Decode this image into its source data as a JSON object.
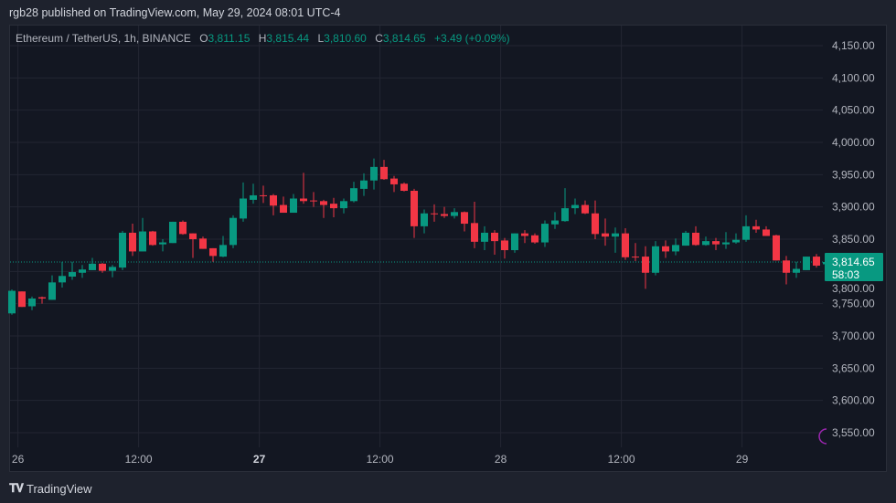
{
  "header": {
    "published": "rgb28 published on TradingView.com, May 29, 2024 08:01 UTC-4"
  },
  "legend": {
    "symbol": "Ethereum / TetherUS, 1h, BINANCE",
    "o_label": "O",
    "o": "3,811.15",
    "h_label": "H",
    "h": "3,815.44",
    "l_label": "L",
    "l": "3,810.60",
    "c_label": "C",
    "c": "3,814.65",
    "change": "+3.49 (+0.09%)"
  },
  "footer": {
    "brand": "TradingView",
    "logo": "TV"
  },
  "colors": {
    "up": "#089981",
    "down": "#f23645",
    "bg": "#131722",
    "grid": "#232632"
  },
  "chart_data": {
    "type": "candlestick",
    "title": "Ethereum / TetherUS, 1h, BINANCE",
    "ylim": [
      3530,
      4170
    ],
    "y_ticks": [
      "4,150.00",
      "4,100.00",
      "4,050.00",
      "4,000.00",
      "3,950.00",
      "3,900.00",
      "3,850.00",
      "3,800.00",
      "3,750.00",
      "3,700.00",
      "3,650.00",
      "3,600.00",
      "3,550.00"
    ],
    "y_tick_values": [
      4150,
      4100,
      4050,
      4000,
      3950,
      3900,
      3850,
      3800,
      3750,
      3700,
      3650,
      3600,
      3550
    ],
    "x_ticks": [
      {
        "label": "26",
        "index": 0.6,
        "bold": false
      },
      {
        "label": "12:00",
        "index": 12.6,
        "bold": false
      },
      {
        "label": "27",
        "index": 24.6,
        "bold": true
      },
      {
        "label": "12:00",
        "index": 36.6,
        "bold": false
      },
      {
        "label": "28",
        "index": 48.6,
        "bold": false
      },
      {
        "label": "12:00",
        "index": 60.6,
        "bold": false
      },
      {
        "label": "29",
        "index": 72.6,
        "bold": false
      }
    ],
    "last_price": {
      "value": 3814.65,
      "label": "3,814.65",
      "countdown": "58:03"
    },
    "candles": [
      [
        3735,
        3772,
        3733,
        3770
      ],
      [
        3769,
        3769,
        3745,
        3745
      ],
      [
        3746,
        3761,
        3740,
        3758
      ],
      [
        3760,
        3761,
        3750,
        3758
      ],
      [
        3756,
        3794,
        3756,
        3783
      ],
      [
        3783,
        3815,
        3775,
        3793
      ],
      [
        3792,
        3815,
        3787,
        3799
      ],
      [
        3798,
        3810,
        3790,
        3803
      ],
      [
        3802,
        3821,
        3802,
        3812
      ],
      [
        3812,
        3813,
        3798,
        3801
      ],
      [
        3801,
        3810,
        3791,
        3807
      ],
      [
        3806,
        3863,
        3802,
        3860
      ],
      [
        3860,
        3874,
        3824,
        3831
      ],
      [
        3831,
        3883,
        3831,
        3862
      ],
      [
        3862,
        3863,
        3840,
        3841
      ],
      [
        3842,
        3850,
        3831,
        3845
      ],
      [
        3844,
        3877,
        3844,
        3877
      ],
      [
        3877,
        3879,
        3857,
        3858
      ],
      [
        3859,
        3859,
        3821,
        3850
      ],
      [
        3851,
        3854,
        3835,
        3835
      ],
      [
        3836,
        3836,
        3815,
        3824
      ],
      [
        3823,
        3855,
        3822,
        3841
      ],
      [
        3841,
        3887,
        3836,
        3883
      ],
      [
        3882,
        3938,
        3877,
        3913
      ],
      [
        3911,
        3936,
        3905,
        3918
      ],
      [
        3918,
        3933,
        3906,
        3917
      ],
      [
        3918,
        3920,
        3887,
        3902
      ],
      [
        3903,
        3916,
        3891,
        3891
      ],
      [
        3891,
        3920,
        3891,
        3913
      ],
      [
        3913,
        3953,
        3905,
        3909
      ],
      [
        3910,
        3923,
        3900,
        3909
      ],
      [
        3909,
        3911,
        3883,
        3903
      ],
      [
        3905,
        3914,
        3884,
        3898
      ],
      [
        3898,
        3913,
        3890,
        3909
      ],
      [
        3909,
        3939,
        3907,
        3929
      ],
      [
        3928,
        3952,
        3917,
        3941
      ],
      [
        3941,
        3975,
        3927,
        3962
      ],
      [
        3962,
        3973,
        3942,
        3943
      ],
      [
        3944,
        3948,
        3923,
        3935
      ],
      [
        3936,
        3938,
        3924,
        3925
      ],
      [
        3925,
        3928,
        3852,
        3870
      ],
      [
        3870,
        3896,
        3859,
        3890
      ],
      [
        3890,
        3904,
        3877,
        3889
      ],
      [
        3889,
        3900,
        3883,
        3886
      ],
      [
        3886,
        3898,
        3882,
        3892
      ],
      [
        3892,
        3893,
        3862,
        3874
      ],
      [
        3875,
        3908,
        3836,
        3846
      ],
      [
        3846,
        3870,
        3833,
        3860
      ],
      [
        3860,
        3864,
        3826,
        3847
      ],
      [
        3848,
        3852,
        3820,
        3833
      ],
      [
        3833,
        3859,
        3829,
        3859
      ],
      [
        3859,
        3864,
        3844,
        3855
      ],
      [
        3856,
        3859,
        3843,
        3845
      ],
      [
        3845,
        3879,
        3838,
        3874
      ],
      [
        3873,
        3892,
        3866,
        3879
      ],
      [
        3878,
        3929,
        3877,
        3898
      ],
      [
        3898,
        3913,
        3889,
        3903
      ],
      [
        3903,
        3910,
        3889,
        3890
      ],
      [
        3890,
        3910,
        3850,
        3858
      ],
      [
        3859,
        3882,
        3840,
        3854
      ],
      [
        3854,
        3868,
        3829,
        3859
      ],
      [
        3859,
        3867,
        3818,
        3822
      ],
      [
        3823,
        3844,
        3816,
        3822
      ],
      [
        3823,
        3839,
        3773,
        3798
      ],
      [
        3798,
        3847,
        3794,
        3839
      ],
      [
        3839,
        3848,
        3821,
        3831
      ],
      [
        3831,
        3851,
        3825,
        3841
      ],
      [
        3840,
        3863,
        3840,
        3860
      ],
      [
        3860,
        3870,
        3840,
        3841
      ],
      [
        3841,
        3854,
        3840,
        3847
      ],
      [
        3847,
        3852,
        3833,
        3842
      ],
      [
        3842,
        3861,
        3835,
        3845
      ],
      [
        3845,
        3859,
        3843,
        3849
      ],
      [
        3849,
        3887,
        3846,
        3870
      ],
      [
        3870,
        3880,
        3860,
        3865
      ],
      [
        3865,
        3870,
        3855,
        3855
      ],
      [
        3856,
        3857,
        3817,
        3817
      ],
      [
        3817,
        3824,
        3780,
        3798
      ],
      [
        3798,
        3815,
        3790,
        3804
      ],
      [
        3802,
        3823,
        3802,
        3823
      ],
      [
        3823,
        3827,
        3806,
        3809
      ],
      [
        3811.15,
        3815.44,
        3810.6,
        3814.65
      ]
    ]
  }
}
